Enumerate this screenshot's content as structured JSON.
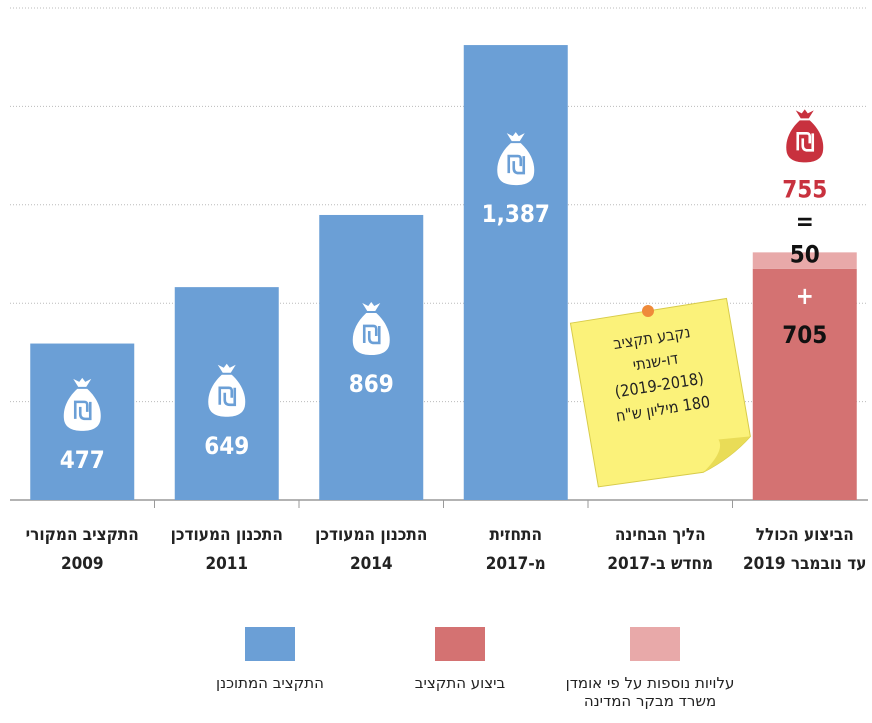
{
  "chart_data": {
    "type": "bar",
    "categories": [
      [
        "התקציב המקורי",
        "2009"
      ],
      [
        "התכנון המעודכן",
        "2011"
      ],
      [
        "התכנון המעודכן",
        "2014"
      ],
      [
        "התחזית",
        "מ-2017"
      ],
      [
        "הליך הבחינה",
        "מחדש ב-2017"
      ],
      [
        "הביצוע הכולל",
        "עד נובמבר 2019"
      ]
    ],
    "series": [
      {
        "name": "התקציב המתוכנן",
        "color": "#6b9fd6",
        "values": [
          477,
          649,
          869,
          1387,
          null,
          null
        ],
        "value_labels": [
          null,
          null,
          null,
          "1,387",
          null,
          null
        ]
      },
      {
        "name": "ביצוע התקציב",
        "color": "#d47272",
        "values": [
          null,
          null,
          null,
          null,
          null,
          705
        ]
      },
      {
        "name": "עלויות נוספות על פי אומדן משרד מבקר המדינה",
        "color": "#e8a9a9",
        "values": [
          null,
          null,
          null,
          null,
          null,
          50
        ]
      }
    ],
    "stacked": true,
    "total": 755,
    "total_color": "#c8313e",
    "annotation": [
      "נקבע תקציב",
      "דו-שנתי",
      "(2019-2018)",
      "180 מיליון ש\"ח"
    ],
    "ylim": [
      0,
      1500
    ],
    "yticks": [
      0,
      300,
      600,
      900,
      1200,
      1500
    ],
    "grid": true
  }
}
